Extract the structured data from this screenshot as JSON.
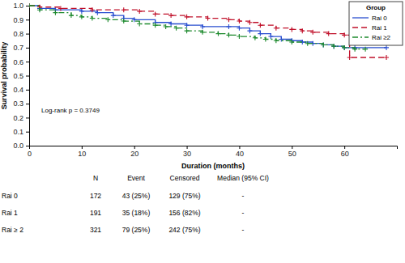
{
  "chart_data": {
    "type": "line",
    "x_label": "Duration (months)",
    "y_label": "Survival probability",
    "xlim": [
      0,
      70
    ],
    "xticks": [
      0,
      10,
      20,
      30,
      40,
      50,
      60
    ],
    "ylim": [
      0,
      1
    ],
    "yticks": [
      {
        "value": 0,
        "label": "0.0"
      },
      0.1,
      0.2,
      0.3,
      0.4,
      0.5,
      0.6,
      0.7,
      0.8,
      0.9,
      {
        "value": 1,
        "label": "1.0"
      }
    ],
    "grid": false,
    "legend": "upper right",
    "legend_title": "Group",
    "annotations": [
      "Log-rank p = 0.3749"
    ],
    "series": [
      {
        "name": "Rai 0",
        "color": "#2a4fd0",
        "line_style": "solid",
        "marker": "plus",
        "x": [
          0,
          2,
          5,
          10,
          13,
          16,
          18,
          20,
          24,
          27,
          30,
          33,
          38,
          40,
          42,
          44,
          46,
          48,
          50,
          52,
          54,
          56,
          58,
          60,
          62,
          68
        ],
        "values": [
          1.0,
          0.98,
          0.97,
          0.96,
          0.95,
          0.93,
          0.91,
          0.9,
          0.88,
          0.87,
          0.86,
          0.85,
          0.85,
          0.84,
          0.82,
          0.8,
          0.78,
          0.76,
          0.75,
          0.74,
          0.73,
          0.72,
          0.71,
          0.7,
          0.7,
          0.7
        ]
      },
      {
        "name": "Rai 1",
        "color": "#c0102a",
        "line_style": "dashed",
        "marker": "plus",
        "x": [
          0,
          2,
          6,
          12,
          18,
          21,
          24,
          27,
          30,
          34,
          38,
          40,
          42,
          44,
          47,
          50,
          52,
          54,
          57,
          60,
          61,
          68
        ],
        "values": [
          1.0,
          0.99,
          0.98,
          0.97,
          0.97,
          0.96,
          0.94,
          0.93,
          0.92,
          0.91,
          0.9,
          0.89,
          0.88,
          0.86,
          0.84,
          0.83,
          0.82,
          0.81,
          0.8,
          0.79,
          0.63,
          0.63
        ]
      },
      {
        "name": "Rai ≥2",
        "color": "#1e8a2e",
        "line_style": "dashdot",
        "marker": "plus",
        "x": [
          0,
          2,
          5,
          8,
          10,
          12,
          15,
          18,
          21,
          24,
          26,
          28,
          30,
          33,
          36,
          38,
          40,
          43,
          45,
          47,
          50,
          53,
          56,
          58,
          60,
          62,
          64
        ],
        "values": [
          1.0,
          0.97,
          0.95,
          0.93,
          0.92,
          0.91,
          0.9,
          0.89,
          0.87,
          0.86,
          0.85,
          0.84,
          0.82,
          0.81,
          0.8,
          0.79,
          0.78,
          0.77,
          0.76,
          0.75,
          0.74,
          0.73,
          0.72,
          0.71,
          0.7,
          0.69,
          0.69
        ]
      }
    ],
    "table": {
      "columns": [
        "N",
        "Event",
        "Censored",
        "Median (95% CI)"
      ],
      "rows": [
        {
          "label": "Rai 0",
          "cells": [
            "172",
            "43 (25%)",
            "129 (75%)",
            "-"
          ]
        },
        {
          "label": "Rai 1",
          "cells": [
            "191",
            "35 (18%)",
            "156 (82%)",
            "-"
          ]
        },
        {
          "label": "Rai ≥ 2",
          "cells": [
            "321",
            "79 (25%)",
            "242 (75%)",
            "-"
          ]
        }
      ]
    }
  }
}
